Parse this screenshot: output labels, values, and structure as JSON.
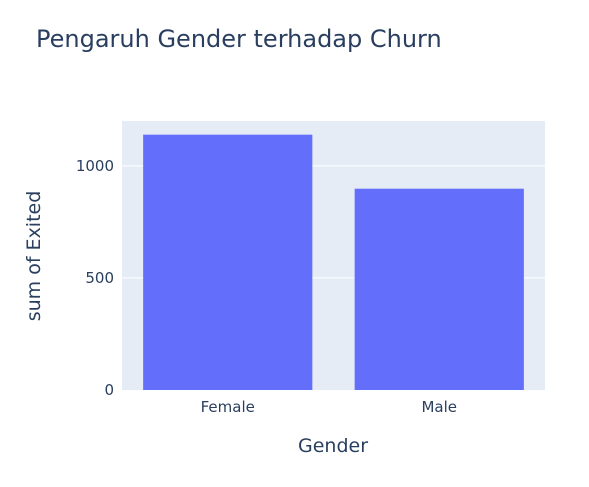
{
  "chart_data": {
    "type": "bar",
    "title": "Pengaruh Gender terhadap Churn",
    "xlabel": "Gender",
    "ylabel": "sum of Exited",
    "categories": [
      "Female",
      "Male"
    ],
    "values": [
      1139,
      898
    ],
    "ylim": [
      0,
      1200
    ],
    "yticks": [
      0,
      500,
      1000
    ],
    "ytick_labels": [
      "0",
      "500",
      "1000"
    ],
    "grid": true,
    "bar_color": "#636efa",
    "plot_bg": "#e5ecf6",
    "text_color": "#2a3f5f"
  }
}
